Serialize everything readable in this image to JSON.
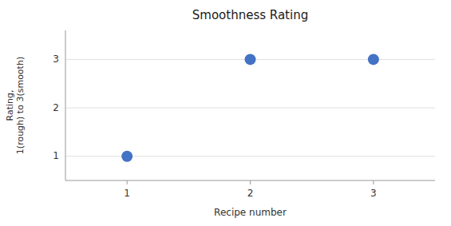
{
  "chart_data": {
    "type": "scatter",
    "title": "Smoothness Rating",
    "x_label": "Recipe number",
    "y_label": "Rating,\n1(rough) to 3(smooth)",
    "x": [
      1,
      2,
      3
    ],
    "y": [
      1,
      3,
      3
    ],
    "color": "#4472C4",
    "xlim": [
      0.5,
      3.5
    ],
    "ylim": [
      0.5,
      3.6
    ],
    "xticks": [
      1,
      2,
      3
    ],
    "yticks": [
      1,
      2,
      3
    ],
    "grid": true
  }
}
